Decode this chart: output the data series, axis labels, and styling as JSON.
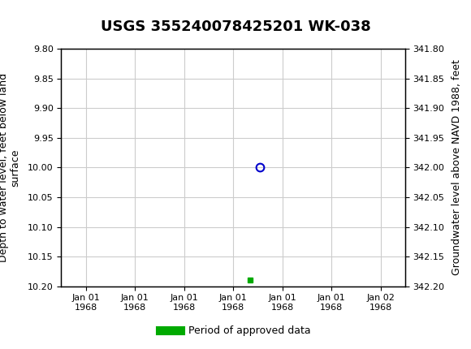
{
  "title": "USGS 355240078425201 WK-038",
  "title_fontsize": 13,
  "header_color": "#1a6b3c",
  "bg_color": "#ffffff",
  "plot_bg_color": "#ffffff",
  "grid_color": "#cccccc",
  "left_ylabel": "Depth to water level, feet below land\nsurface",
  "right_ylabel": "Groundwater level above NAVD 1988, feet",
  "ylabel_fontsize": 9,
  "left_ylim": [
    9.8,
    10.2
  ],
  "right_ylim": [
    341.8,
    342.2
  ],
  "left_yticks": [
    9.8,
    9.85,
    9.9,
    9.95,
    10.0,
    10.05,
    10.1,
    10.15,
    10.2
  ],
  "right_yticks": [
    341.8,
    341.85,
    341.9,
    341.95,
    342.0,
    342.05,
    342.1,
    342.15,
    342.2
  ],
  "left_ytick_labels": [
    "9.80",
    "9.85",
    "9.90",
    "9.95",
    "10.00",
    "10.05",
    "10.10",
    "10.15",
    "10.20"
  ],
  "right_ytick_labels": [
    "341.80",
    "341.85",
    "341.90",
    "341.95",
    "342.00",
    "342.05",
    "342.10",
    "342.15",
    "342.20"
  ],
  "xtick_labels": [
    "Jan 01\n1968",
    "Jan 01\n1968",
    "Jan 01\n1968",
    "Jan 01\n1968",
    "Jan 01\n1968",
    "Jan 01\n1968",
    "Jan 02\n1968"
  ],
  "tick_fontsize": 8,
  "data_point_color": "#0000cc",
  "data_point_markersize": 7,
  "bar_color": "#00aa00",
  "legend_label": "Period of approved data",
  "legend_color": "#00aa00",
  "font_family": "DejaVu Sans"
}
